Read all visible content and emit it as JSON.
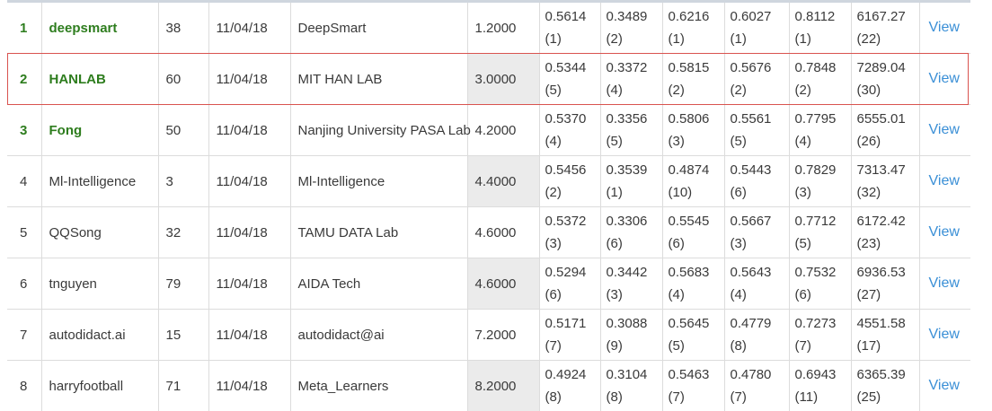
{
  "colors": {
    "top3_text": "#2e7d1e",
    "link": "#3a8fd6",
    "highlight_border": "#d9534f",
    "shaded_cell": "#ebebeb"
  },
  "highlighted_row": 2,
  "view_label": "View",
  "rows": [
    {
      "rank": "1",
      "user": "deepsmart",
      "entries": "38",
      "date": "11/04/18",
      "team": "DeepSmart",
      "avg": "1.2000",
      "shaded": false,
      "top3": true,
      "metrics": [
        {
          "v": "0.5614",
          "r": "(1)"
        },
        {
          "v": "0.3489",
          "r": "(2)"
        },
        {
          "v": "0.6216",
          "r": "(1)"
        },
        {
          "v": "0.6027",
          "r": "(1)"
        },
        {
          "v": "0.8112",
          "r": "(1)"
        },
        {
          "v": "6167.27",
          "r": "(22)"
        }
      ]
    },
    {
      "rank": "2",
      "user": "HANLAB",
      "entries": "60",
      "date": "11/04/18",
      "team": "MIT HAN LAB",
      "avg": "3.0000",
      "shaded": true,
      "top3": true,
      "metrics": [
        {
          "v": "0.5344",
          "r": "(5)"
        },
        {
          "v": "0.3372",
          "r": "(4)"
        },
        {
          "v": "0.5815",
          "r": "(2)"
        },
        {
          "v": "0.5676",
          "r": "(2)"
        },
        {
          "v": "0.7848",
          "r": "(2)"
        },
        {
          "v": "7289.04",
          "r": "(30)"
        }
      ]
    },
    {
      "rank": "3",
      "user": "Fong",
      "entries": "50",
      "date": "11/04/18",
      "team": "Nanjing University PASA Lab",
      "avg": "4.2000",
      "shaded": false,
      "top3": true,
      "metrics": [
        {
          "v": "0.5370",
          "r": "(4)"
        },
        {
          "v": "0.3356",
          "r": "(5)"
        },
        {
          "v": "0.5806",
          "r": "(3)"
        },
        {
          "v": "0.5561",
          "r": "(5)"
        },
        {
          "v": "0.7795",
          "r": "(4)"
        },
        {
          "v": "6555.01",
          "r": "(26)"
        }
      ]
    },
    {
      "rank": "4",
      "user": "Ml-Intelligence",
      "entries": "3",
      "date": "11/04/18",
      "team": "Ml-Intelligence",
      "avg": "4.4000",
      "shaded": true,
      "top3": false,
      "metrics": [
        {
          "v": "0.5456",
          "r": "(2)"
        },
        {
          "v": "0.3539",
          "r": "(1)"
        },
        {
          "v": "0.4874",
          "r": "(10)"
        },
        {
          "v": "0.5443",
          "r": "(6)"
        },
        {
          "v": "0.7829",
          "r": "(3)"
        },
        {
          "v": "7313.47",
          "r": "(32)"
        }
      ]
    },
    {
      "rank": "5",
      "user": "QQSong",
      "entries": "32",
      "date": "11/04/18",
      "team": "TAMU DATA Lab",
      "avg": "4.6000",
      "shaded": false,
      "top3": false,
      "metrics": [
        {
          "v": "0.5372",
          "r": "(3)"
        },
        {
          "v": "0.3306",
          "r": "(6)"
        },
        {
          "v": "0.5545",
          "r": "(6)"
        },
        {
          "v": "0.5667",
          "r": "(3)"
        },
        {
          "v": "0.7712",
          "r": "(5)"
        },
        {
          "v": "6172.42",
          "r": "(23)"
        }
      ]
    },
    {
      "rank": "6",
      "user": "tnguyen",
      "entries": "79",
      "date": "11/04/18",
      "team": "AIDA Tech",
      "avg": "4.6000",
      "shaded": true,
      "top3": false,
      "metrics": [
        {
          "v": "0.5294",
          "r": "(6)"
        },
        {
          "v": "0.3442",
          "r": "(3)"
        },
        {
          "v": "0.5683",
          "r": "(4)"
        },
        {
          "v": "0.5643",
          "r": "(4)"
        },
        {
          "v": "0.7532",
          "r": "(6)"
        },
        {
          "v": "6936.53",
          "r": "(27)"
        }
      ]
    },
    {
      "rank": "7",
      "user": "autodidact.ai",
      "entries": "15",
      "date": "11/04/18",
      "team": "autodidact@ai",
      "avg": "7.2000",
      "shaded": false,
      "top3": false,
      "metrics": [
        {
          "v": "0.5171",
          "r": "(7)"
        },
        {
          "v": "0.3088",
          "r": "(9)"
        },
        {
          "v": "0.5645",
          "r": "(5)"
        },
        {
          "v": "0.4779",
          "r": "(8)"
        },
        {
          "v": "0.7273",
          "r": "(7)"
        },
        {
          "v": "4551.58",
          "r": "(17)"
        }
      ]
    },
    {
      "rank": "8",
      "user": "harryfootball",
      "entries": "71",
      "date": "11/04/18",
      "team": "Meta_Learners",
      "avg": "8.2000",
      "shaded": true,
      "top3": false,
      "metrics": [
        {
          "v": "0.4924",
          "r": "(8)"
        },
        {
          "v": "0.3104",
          "r": "(8)"
        },
        {
          "v": "0.5463",
          "r": "(7)"
        },
        {
          "v": "0.4780",
          "r": "(7)"
        },
        {
          "v": "0.6943",
          "r": "(11)"
        },
        {
          "v": "6365.39",
          "r": "(25)"
        }
      ]
    }
  ]
}
